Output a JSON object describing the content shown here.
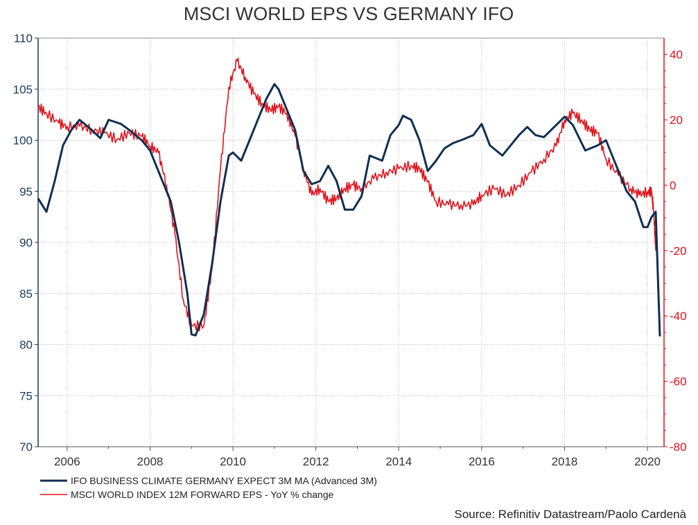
{
  "chart_data": {
    "type": "line",
    "title": "MSCI WORLD EPS VS GERMANY IFO",
    "source": "Source: Refinitiv Datastream/Paolo Cardenà",
    "left_axis": {
      "ylim": [
        70,
        110
      ],
      "ticks": [
        70,
        75,
        80,
        85,
        90,
        95,
        100,
        105,
        110
      ],
      "color": "#1a3a5c"
    },
    "right_axis": {
      "ylim": [
        -80,
        45
      ],
      "ticks": [
        -80,
        -60,
        -40,
        -20,
        0,
        20,
        40
      ],
      "color": "#e0101a"
    },
    "x_axis": {
      "xlim": [
        2005.3,
        2020.4
      ],
      "ticks": [
        2006,
        2008,
        2010,
        2012,
        2014,
        2016,
        2018,
        2020
      ]
    },
    "grid": true,
    "legend_position": "bottom-left",
    "series": [
      {
        "name": "IFO BUSINESS CLIMATE GERMANY EXPECT 3M MA (Advanced 3M)",
        "axis": "left",
        "color": "#0f2f52",
        "x": [
          2005.3,
          2005.5,
          2005.7,
          2005.9,
          2006.1,
          2006.3,
          2006.6,
          2006.8,
          2007.0,
          2007.3,
          2007.5,
          2007.8,
          2008.0,
          2008.2,
          2008.5,
          2008.7,
          2008.9,
          2009.0,
          2009.1,
          2009.3,
          2009.5,
          2009.7,
          2009.9,
          2010.0,
          2010.2,
          2010.4,
          2010.6,
          2010.8,
          2011.0,
          2011.1,
          2011.3,
          2011.5,
          2011.7,
          2011.9,
          2012.1,
          2012.3,
          2012.5,
          2012.7,
          2012.9,
          2013.1,
          2013.3,
          2013.6,
          2013.8,
          2014.0,
          2014.1,
          2014.3,
          2014.5,
          2014.7,
          2014.9,
          2015.1,
          2015.3,
          2015.5,
          2015.8,
          2016.0,
          2016.2,
          2016.5,
          2016.7,
          2016.9,
          2017.1,
          2017.3,
          2017.5,
          2017.8,
          2018.0,
          2018.2,
          2018.5,
          2018.8,
          2019.0,
          2019.2,
          2019.5,
          2019.7,
          2019.9,
          2020.0,
          2020.1,
          2020.2,
          2020.3
        ],
        "values": [
          94.3,
          93.0,
          96.0,
          99.5,
          101.0,
          102.0,
          101.0,
          100.2,
          102.0,
          101.6,
          101.0,
          100.0,
          99.0,
          97.0,
          94.0,
          90.0,
          85.0,
          81.0,
          80.9,
          83.0,
          88.0,
          94.0,
          98.5,
          98.8,
          98.0,
          100.0,
          102.0,
          104.0,
          105.5,
          105.0,
          103.0,
          101.0,
          97.0,
          95.7,
          96.0,
          97.5,
          96.0,
          93.2,
          93.2,
          94.5,
          98.5,
          98.0,
          100.5,
          101.5,
          102.4,
          102.0,
          100.0,
          97.0,
          98.0,
          99.2,
          99.7,
          100.0,
          100.5,
          101.6,
          99.5,
          98.5,
          99.5,
          100.5,
          101.3,
          100.5,
          100.3,
          101.5,
          102.3,
          101.5,
          99.0,
          99.5,
          100.0,
          98.0,
          95.0,
          94.0,
          91.5,
          91.5,
          92.5,
          93.0,
          80.8
        ]
      },
      {
        "name": "MSCI WORLD INDEX 12M FORWARD EPS - YoY % change",
        "axis": "right",
        "color": "#e0101a",
        "x": [
          2005.3,
          2005.5,
          2005.8,
          2006.0,
          2006.3,
          2006.6,
          2006.9,
          2007.2,
          2007.5,
          2007.8,
          2008.0,
          2008.2,
          2008.4,
          2008.6,
          2008.8,
          2009.0,
          2009.3,
          2009.5,
          2009.7,
          2009.9,
          2010.1,
          2010.3,
          2010.5,
          2010.7,
          2010.9,
          2011.1,
          2011.3,
          2011.5,
          2011.7,
          2011.9,
          2012.1,
          2012.3,
          2012.5,
          2012.7,
          2012.9,
          2013.1,
          2013.4,
          2013.7,
          2014.0,
          2014.3,
          2014.5,
          2014.7,
          2014.9,
          2015.2,
          2015.5,
          2015.8,
          2016.0,
          2016.3,
          2016.6,
          2016.9,
          2017.2,
          2017.5,
          2017.8,
          2018.0,
          2018.2,
          2018.4,
          2018.6,
          2018.8,
          2019.0,
          2019.3,
          2019.6,
          2019.8,
          2020.0,
          2020.1,
          2020.15,
          2020.2
        ],
        "values": [
          24,
          22,
          19,
          18,
          18,
          17,
          16,
          14,
          16,
          15,
          12,
          10,
          0,
          -15,
          -35,
          -43,
          -43,
          -25,
          5,
          30,
          38,
          33,
          28,
          25,
          23,
          24,
          22,
          15,
          5,
          -3,
          -1,
          -5,
          -4,
          -1,
          0,
          -1,
          2,
          4,
          5,
          6,
          5,
          1,
          -5,
          -6,
          -6,
          -6,
          -3,
          -1,
          -3,
          0,
          4,
          8,
          12,
          20,
          22,
          20,
          17,
          16,
          8,
          3,
          -1,
          -3,
          -2,
          -2,
          -8,
          -20
        ]
      }
    ]
  }
}
